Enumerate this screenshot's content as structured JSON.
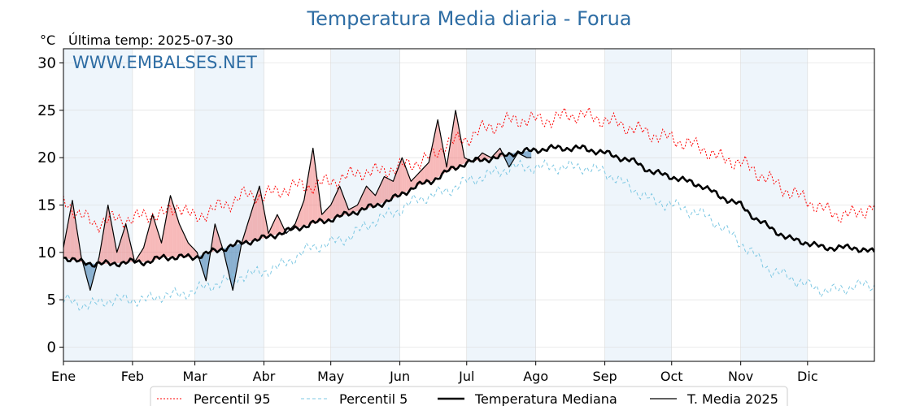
{
  "chart_data": {
    "type": "line",
    "title": "Temperatura Media diaria - Forua",
    "unit_label": "°C",
    "last_temp_label": "Última temp: 2025-07-30",
    "watermark": "WWW.EMBALSES.NET",
    "ylim": [
      -1.5,
      31.5
    ],
    "yticks": [
      "0",
      "5",
      "10",
      "15",
      "20",
      "25",
      "30"
    ],
    "months": [
      "Ene",
      "Feb",
      "Mar",
      "Abr",
      "May",
      "Jun",
      "Jul",
      "Ago",
      "Sep",
      "Oct",
      "Nov",
      "Dic"
    ],
    "grid": true,
    "legend_position": "bottom",
    "colors": {
      "p95": "#ff0000",
      "p5": "#7ec8e3",
      "median": "#000000",
      "current": "#000000",
      "above_fill": "#f08080",
      "below_fill": "#4682b4",
      "band": "#eef5fb",
      "title": "#2e6da4"
    },
    "x_key_days": [
      1,
      8,
      15,
      22,
      32,
      39,
      46,
      53,
      60,
      67,
      74,
      81,
      91,
      98,
      105,
      112,
      121,
      128,
      135,
      142,
      152,
      159,
      166,
      173,
      182,
      189,
      196,
      203,
      213,
      220,
      227,
      234,
      244,
      251,
      258,
      265,
      274,
      281,
      288,
      295,
      305,
      312,
      319,
      326,
      335,
      342,
      349,
      356,
      365
    ],
    "series": [
      {
        "name": "Percentil 95",
        "style": "dotted-red",
        "values": [
          15.5,
          14,
          13,
          13.5,
          13.5,
          14,
          14,
          15,
          13.5,
          14.5,
          15,
          16,
          16,
          16.5,
          17,
          17,
          17.5,
          18,
          18.5,
          18.5,
          19,
          19.5,
          20,
          21.5,
          22,
          23,
          23.5,
          24,
          24,
          24,
          24.5,
          24.5,
          24,
          23.5,
          23,
          22.5,
          22,
          21.5,
          21,
          20,
          19.5,
          18.5,
          17.5,
          16.5,
          15.5,
          14.5,
          14,
          14,
          15
        ]
      },
      {
        "name": "Percentil 5",
        "style": "dashed-lightblue",
        "values": [
          5,
          4.5,
          4.5,
          5,
          5,
          5,
          5.5,
          5.5,
          6,
          6.5,
          7,
          7.5,
          8,
          8.5,
          9.5,
          10.5,
          11,
          11.5,
          12.5,
          13.5,
          14.5,
          15.5,
          16,
          16.5,
          17.5,
          18,
          18.5,
          19,
          19,
          19,
          19,
          19,
          18.5,
          17.5,
          16.5,
          15.5,
          15,
          14.5,
          14,
          13,
          11,
          9.5,
          8,
          7.5,
          6.5,
          6,
          6,
          6.5,
          6.5
        ]
      },
      {
        "name": "Temperatura Mediana",
        "style": "solid-thick",
        "values": [
          9.5,
          9,
          8.8,
          8.8,
          9,
          9,
          9.5,
          9.5,
          9.5,
          10,
          10.5,
          11,
          11.5,
          12,
          12.5,
          13,
          13.5,
          14,
          14.5,
          15,
          16,
          17,
          17.5,
          18.5,
          19.5,
          19.8,
          20,
          20.5,
          20.8,
          21,
          21,
          21,
          20.5,
          20,
          19.5,
          18.5,
          18,
          17.5,
          17,
          16,
          15,
          13.5,
          12.5,
          11.5,
          11,
          10.5,
          10.5,
          10.5,
          10
        ]
      },
      {
        "name": "T. Media 2025",
        "style": "solid-thin",
        "x_days": [
          1,
          5,
          9,
          13,
          17,
          21,
          25,
          29,
          33,
          37,
          41,
          45,
          49,
          53,
          57,
          61,
          65,
          69,
          73,
          77,
          81,
          85,
          89,
          93,
          97,
          101,
          105,
          109,
          113,
          117,
          121,
          125,
          129,
          133,
          137,
          141,
          145,
          149,
          153,
          157,
          161,
          165,
          169,
          173,
          177,
          181,
          185,
          189,
          193,
          197,
          201,
          205,
          209,
          211
        ],
        "values": [
          10.5,
          15.5,
          9.5,
          6,
          9.5,
          15,
          10,
          13,
          9,
          10.5,
          14,
          11,
          16,
          13,
          11,
          10,
          7,
          13,
          10,
          6,
          11,
          14,
          17,
          12,
          14,
          12,
          13,
          15.5,
          21,
          14,
          15,
          17,
          14.5,
          15,
          17,
          16,
          18,
          17.5,
          20,
          17.5,
          18.5,
          19.5,
          24,
          19,
          25,
          20,
          19.5,
          20.5,
          20,
          21,
          19,
          20.5,
          20,
          20
        ]
      }
    ]
  },
  "legend": {
    "p95": "Percentil 95",
    "p5": "Percentil 5",
    "median": "Temperatura Mediana",
    "current": "T. Media 2025"
  }
}
